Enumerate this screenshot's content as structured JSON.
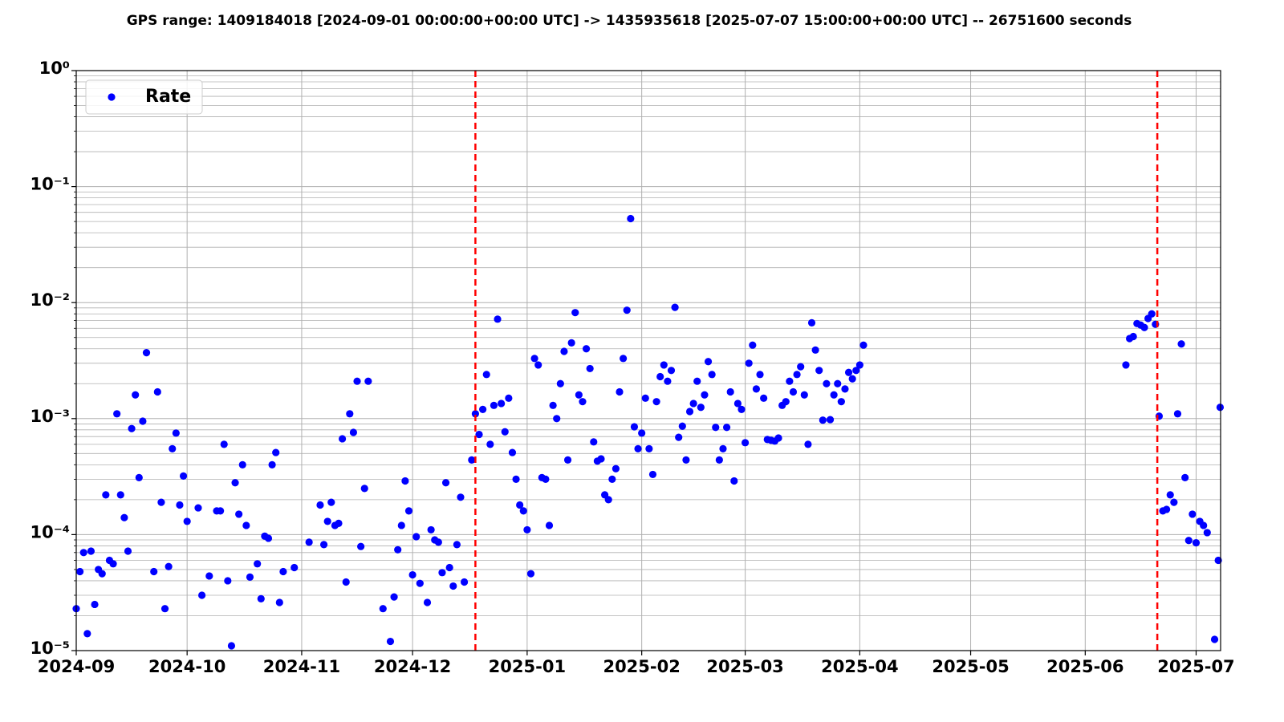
{
  "chart_data": {
    "type": "scatter",
    "title": "GPS range: 1409184018 [2024-09-01 00:00:00+00:00 UTC] -> 1435935618 [2025-07-07 15:00:00+00:00 UTC] -- 26751600 seconds",
    "xlim": [
      1409184018,
      1435935618
    ],
    "xticks": [
      {
        "value": 1409184018,
        "label": "2024-09"
      },
      {
        "value": 1411776018,
        "label": "2024-10"
      },
      {
        "value": 1414454418,
        "label": "2024-11"
      },
      {
        "value": 1417046418,
        "label": "2024-12"
      },
      {
        "value": 1419724818,
        "label": "2025-01"
      },
      {
        "value": 1422403218,
        "label": "2025-02"
      },
      {
        "value": 1424822418,
        "label": "2025-03"
      },
      {
        "value": 1427500818,
        "label": "2025-04"
      },
      {
        "value": 1430092818,
        "label": "2025-05"
      },
      {
        "value": 1432771218,
        "label": "2025-06"
      },
      {
        "value": 1435363218,
        "label": "2025-07"
      }
    ],
    "ylim": [
      1e-05,
      1
    ],
    "yticks": [
      {
        "value": 1e-05,
        "label": "10⁻⁵"
      },
      {
        "value": 0.0001,
        "label": "10⁻⁴"
      },
      {
        "value": 0.001,
        "label": "10⁻³"
      },
      {
        "value": 0.01,
        "label": "10⁻²"
      },
      {
        "value": 0.1,
        "label": "10⁻¹"
      },
      {
        "value": 1,
        "label": "10⁰"
      }
    ],
    "ylog": true,
    "grid": true,
    "minor_grid": true,
    "legend": "upper left",
    "vlines": [
      1418515218,
      1434456018
    ],
    "vline_color": "red",
    "x": [
      1409184018,
      1409270418,
      1409356818,
      1409443218,
      1409529618,
      1409616018,
      1409702418,
      1409788818,
      1409875218,
      1409961618,
      1410048018,
      1410134418,
      1410220818,
      1410307218,
      1410393618,
      1410480018,
      1410566418,
      1410652818,
      1410739218,
      1410825618,
      1410998418,
      1411084818,
      1411171218,
      1411257618,
      1411344018,
      1411430418,
      1411516818,
      1411603218,
      1411689618,
      1411776018,
      1412035218,
      1412121618,
      1412294418,
      1412467218,
      1412553618,
      1412640018,
      1412726418,
      1412812818,
      1412899218,
      1412985618,
      1413072018,
      1413158418,
      1413244818,
      1413417618,
      1413504018,
      1413590418,
      1413676818,
      1413763218,
      1413849618,
      1413936018,
      1414022418,
      1414281618,
      1414627218,
      1414886418,
      1414972818,
      1415059218,
      1415145618,
      1415232018,
      1415318418,
      1415404818,
      1415491218,
      1415577618,
      1415664018,
      1415750418,
      1415836818,
      1415923218,
      1416009618,
      1416355218,
      1416528018,
      1416614418,
      1416700818,
      1416787218,
      1416873618,
      1416960018,
      1417046418,
      1417132818,
      1417219218,
      1417392018,
      1417478418,
      1417564818,
      1417651218,
      1417737618,
      1417824018,
      1417910418,
      1417996818,
      1418083218,
      1418169618,
      1418256018,
      1418428818,
      1418515218,
      1418601618,
      1418688018,
      1418774418,
      1418860818,
      1418947218,
      1419033618,
      1419120018,
      1419206418,
      1419292818,
      1419379218,
      1419465618,
      1419552018,
      1419638418,
      1419724818,
      1419811218,
      1419897618,
      1419984018,
      1420070418,
      1420156818,
      1420243218,
      1420329618,
      1420416018,
      1420502418,
      1420588818,
      1420675218,
      1420761618,
      1420848018,
      1420934418,
      1421020818,
      1421107218,
      1421193618,
      1421280018,
      1421366418,
      1421452818,
      1421539218,
      1421625618,
      1421712018,
      1421798418,
      1421884818,
      1421971218,
      1422057618,
      1422144018,
      1422230418,
      1422316818,
      1422403218,
      1422489618,
      1422576018,
      1422662418,
      1422748818,
      1422835218,
      1422921618,
      1423008018,
      1423094418,
      1423180818,
      1423267218,
      1423353618,
      1423440018,
      1423526418,
      1423612818,
      1423699218,
      1423785618,
      1423872018,
      1423958418,
      1424044818,
      1424131218,
      1424217618,
      1424304018,
      1424390418,
      1424476818,
      1424563218,
      1424649618,
      1424736018,
      1424822418,
      1424908818,
      1424995218,
      1425081618,
      1425168018,
      1425254418,
      1425340818,
      1425427218,
      1425513618,
      1425600018,
      1425686418,
      1425772818,
      1425859218,
      1425945618,
      1426032018,
      1426118418,
      1426204818,
      1426291218,
      1426377618,
      1426464018,
      1426550418,
      1426636818,
      1426723218,
      1426809618,
      1426896018,
      1426982418,
      1427068818,
      1427155218,
      1427241618,
      1427328018,
      1427414418,
      1427500818,
      1427587218,
      1433721618,
      1433808018,
      1433894418,
      1433980818,
      1434067218,
      1434153618,
      1434240018,
      1434326418,
      1434412818,
      1434499218,
      1434585618,
      1434672018,
      1434758418,
      1434844818,
      1434931218,
      1435017618,
      1435104018,
      1435190418,
      1435276818,
      1435363218,
      1435449618,
      1435536018,
      1435622418,
      1435795218,
      1435881618,
      1435924818
    ],
    "series": [
      {
        "name": "Rate",
        "color": "blue",
        "values": [
          2.3e-05,
          4.8e-05,
          7e-05,
          1.4e-05,
          7.2e-05,
          2.5e-05,
          5e-05,
          4.6e-05,
          0.00022,
          6e-05,
          5.6e-05,
          0.0011,
          0.00022,
          0.00014,
          7.2e-05,
          0.00082,
          0.0016,
          0.00031,
          0.00095,
          0.0037,
          4.8e-05,
          0.0017,
          0.00019,
          2.3e-05,
          5.3e-05,
          0.00055,
          0.00075,
          0.00018,
          0.00032,
          0.00013,
          0.00017,
          3e-05,
          4.4e-05,
          0.00016,
          0.00016,
          0.0006,
          4e-05,
          1.1e-05,
          0.00028,
          0.00015,
          0.0004,
          0.00012,
          4.3e-05,
          5.6e-05,
          2.8e-05,
          9.7e-05,
          9.3e-05,
          0.0004,
          0.00051,
          2.6e-05,
          4.8e-05,
          5.2e-05,
          8.6e-05,
          0.00018,
          8.2e-05,
          0.00013,
          0.00019,
          0.00012,
          0.000125,
          0.00067,
          3.9e-05,
          0.0011,
          0.00076,
          0.0021,
          7.9e-05,
          0.00025,
          0.0021,
          2.3e-05,
          1.2e-05,
          2.9e-05,
          7.4e-05,
          0.00012,
          0.00029,
          0.00016,
          4.5e-05,
          9.6e-05,
          3.8e-05,
          2.6e-05,
          0.00011,
          9e-05,
          8.6e-05,
          4.7e-05,
          0.00028,
          5.2e-05,
          3.6e-05,
          8.2e-05,
          0.00021,
          3.9e-05,
          0.00044,
          0.0011,
          0.00073,
          0.0012,
          0.0024,
          0.0006,
          0.0013,
          0.0072,
          0.00135,
          0.00077,
          0.0015,
          0.00051,
          0.0003,
          0.00018,
          0.00016,
          0.00011,
          4.6e-05,
          0.0033,
          0.0029,
          0.00031,
          0.0003,
          0.00012,
          0.0013,
          0.001,
          0.002,
          0.0038,
          0.00044,
          0.0045,
          0.0082,
          0.0016,
          0.0014,
          0.004,
          0.0027,
          0.00063,
          0.00043,
          0.00045,
          0.00022,
          0.0002,
          0.0003,
          0.00037,
          0.0017,
          0.0033,
          0.0086,
          0.053,
          0.00085,
          0.00055,
          0.00075,
          0.0015,
          0.00055,
          0.00033,
          0.0014,
          0.0023,
          0.0029,
          0.0021,
          0.0026,
          0.0091,
          0.00069,
          0.00086,
          0.00044,
          0.00115,
          0.00135,
          0.0021,
          0.00125,
          0.0016,
          0.0031,
          0.0024,
          0.00084,
          0.00044,
          0.00055,
          0.00084,
          0.0017,
          0.00029,
          0.00135,
          0.0012,
          0.00062,
          0.003,
          0.0043,
          0.0018,
          0.0024,
          0.0015,
          0.00066,
          0.00065,
          0.00064,
          0.00068,
          0.0013,
          0.0014,
          0.0021,
          0.0017,
          0.0024,
          0.0028,
          0.0016,
          0.0006,
          0.0067,
          0.0039,
          0.0026,
          0.00097,
          0.002,
          0.00098,
          0.0016,
          0.002,
          0.0014,
          0.0018,
          0.0025,
          0.0022,
          0.0026,
          0.0029,
          0.0043,
          0.0029,
          0.0049,
          0.0051,
          0.0066,
          0.0064,
          0.0061,
          0.0073,
          0.008,
          0.0065,
          0.00105,
          0.00016,
          0.000165,
          0.00022,
          0.00019,
          0.0011,
          0.0044,
          0.00031,
          8.9e-05,
          0.00015,
          8.5e-05,
          0.00013,
          0.00012,
          0.000104,
          1.25e-05,
          6e-05,
          0.00125
        ]
      }
    ]
  }
}
